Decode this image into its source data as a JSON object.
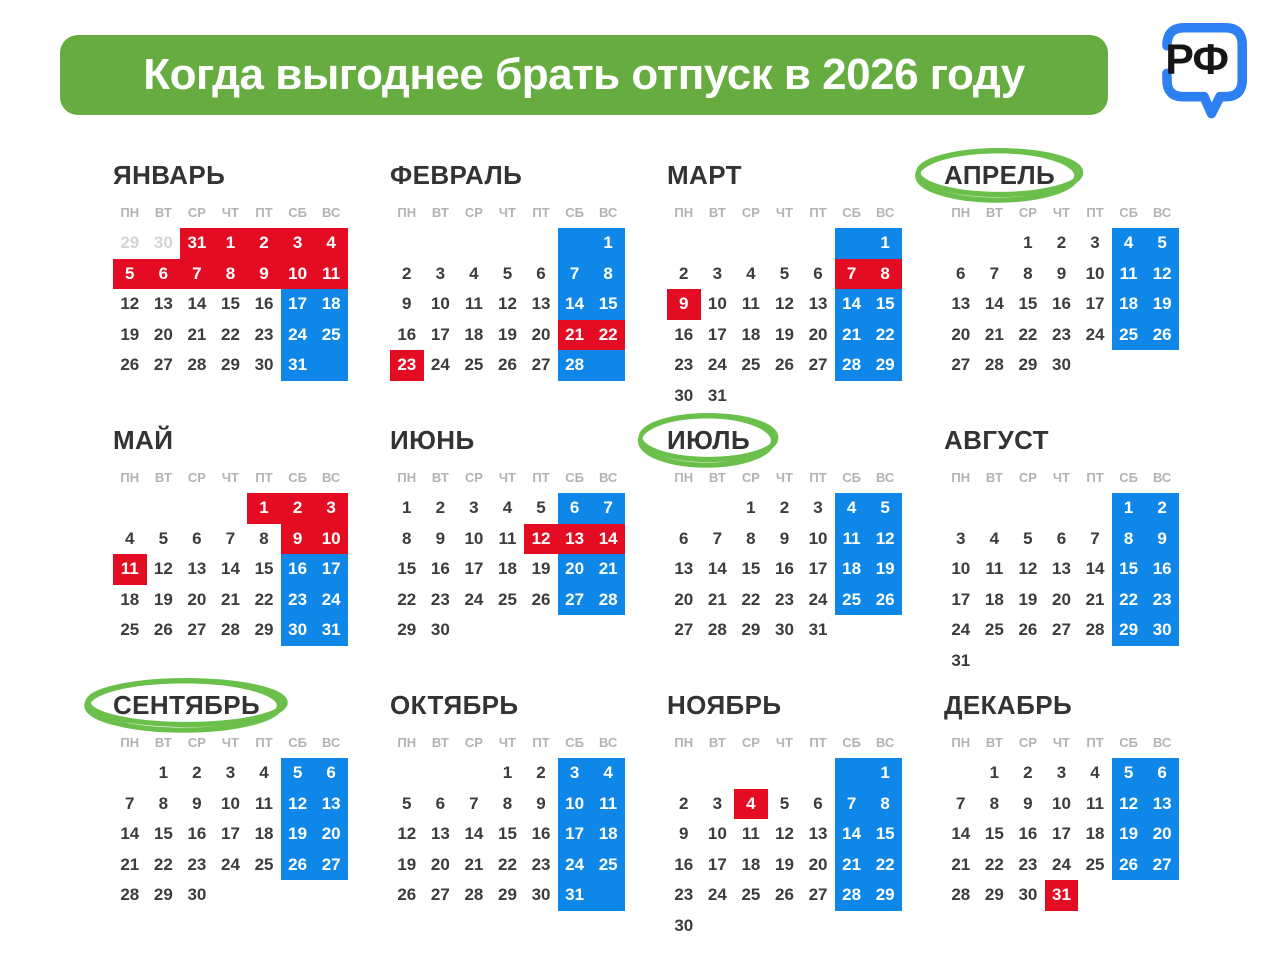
{
  "header": {
    "title": "Когда выгоднее брать отпуск в 2026 году",
    "logo_text": "РФ"
  },
  "colors": {
    "banner_green": "#66ac40",
    "circle_green": "#6bbf4b",
    "holiday_red": "#e30c22",
    "weekend_blue": "#0e87e8",
    "logo_blue": "#2d7ff2",
    "month_title": "#333333",
    "day_text": "#3c3c3c",
    "weekday_grey": "#b3b3b3",
    "adjacent_month_grey": "#d4d4d4"
  },
  "weekdays": [
    "ПН",
    "ВТ",
    "СР",
    "ЧТ",
    "ПТ",
    "СБ",
    "ВС"
  ],
  "months": [
    {
      "id": "january",
      "name": "ЯНВАРЬ",
      "circled": false,
      "weeks": [
        [
          "29|g",
          "30|g",
          "31|r",
          "1|r",
          "2|r",
          "3|r",
          "4|r"
        ],
        [
          "5|r",
          "6|r",
          "7|r",
          "8|r",
          "9|r",
          "10|r",
          "11|r"
        ],
        [
          "12|n",
          "13|n",
          "14|n",
          "15|n",
          "16|n",
          "17|b",
          "18|b"
        ],
        [
          "19|n",
          "20|n",
          "21|n",
          "22|n",
          "23|n",
          "24|b",
          "25|b"
        ],
        [
          "26|n",
          "27|n",
          "28|n",
          "29|n",
          "30|n",
          "31|b",
          "|b"
        ]
      ]
    },
    {
      "id": "february",
      "name": "ФЕВРАЛЬ",
      "circled": false,
      "weeks": [
        [
          "",
          "",
          "",
          "",
          "",
          "|b",
          "1|b"
        ],
        [
          "2|n",
          "3|n",
          "4|n",
          "5|n",
          "6|n",
          "7|b",
          "8|b"
        ],
        [
          "9|n",
          "10|n",
          "11|n",
          "12|n",
          "13|n",
          "14|b",
          "15|b"
        ],
        [
          "16|n",
          "17|n",
          "18|n",
          "19|n",
          "20|n",
          "21|r",
          "22|r"
        ],
        [
          "23|r",
          "24|n",
          "25|n",
          "26|n",
          "27|n",
          "28|b",
          "|b"
        ]
      ]
    },
    {
      "id": "march",
      "name": "МАРТ",
      "circled": false,
      "weeks": [
        [
          "",
          "",
          "",
          "",
          "",
          "|b",
          "1|b"
        ],
        [
          "2|n",
          "3|n",
          "4|n",
          "5|n",
          "6|n",
          "7|r",
          "8|r"
        ],
        [
          "9|r",
          "10|n",
          "11|n",
          "12|n",
          "13|n",
          "14|b",
          "15|b"
        ],
        [
          "16|n",
          "17|n",
          "18|n",
          "19|n",
          "20|n",
          "21|b",
          "22|b"
        ],
        [
          "23|n",
          "24|n",
          "25|n",
          "26|n",
          "27|n",
          "28|b",
          "29|b"
        ],
        [
          "30|n",
          "31|n",
          "",
          "",
          "",
          "",
          ""
        ]
      ]
    },
    {
      "id": "april",
      "name": "АПРЕЛЬ",
      "circled": true,
      "weeks": [
        [
          "",
          "",
          "1|n",
          "2|n",
          "3|n",
          "4|b",
          "5|b"
        ],
        [
          "6|n",
          "7|n",
          "8|n",
          "9|n",
          "10|n",
          "11|b",
          "12|b"
        ],
        [
          "13|n",
          "14|n",
          "15|n",
          "16|n",
          "17|n",
          "18|b",
          "19|b"
        ],
        [
          "20|n",
          "21|n",
          "22|n",
          "23|n",
          "24|n",
          "25|b",
          "26|b"
        ],
        [
          "27|n",
          "28|n",
          "29|n",
          "30|n",
          "",
          "",
          ""
        ]
      ]
    },
    {
      "id": "may",
      "name": "МАЙ",
      "circled": false,
      "weeks": [
        [
          "",
          "",
          "",
          "",
          "1|r",
          "2|r",
          "3|r"
        ],
        [
          "4|n",
          "5|n",
          "6|n",
          "7|n",
          "8|n",
          "9|r",
          "10|r"
        ],
        [
          "11|r",
          "12|n",
          "13|n",
          "14|n",
          "15|n",
          "16|b",
          "17|b"
        ],
        [
          "18|n",
          "19|n",
          "20|n",
          "21|n",
          "22|n",
          "23|b",
          "24|b"
        ],
        [
          "25|n",
          "26|n",
          "27|n",
          "28|n",
          "29|n",
          "30|b",
          "31|b"
        ]
      ]
    },
    {
      "id": "june",
      "name": "ИЮНЬ",
      "circled": false,
      "weeks": [
        [
          "1|n",
          "2|n",
          "3|n",
          "4|n",
          "5|n",
          "6|b",
          "7|b"
        ],
        [
          "8|n",
          "9|n",
          "10|n",
          "11|n",
          "12|r",
          "13|r",
          "14|r"
        ],
        [
          "15|n",
          "16|n",
          "17|n",
          "18|n",
          "19|n",
          "20|b",
          "21|b"
        ],
        [
          "22|n",
          "23|n",
          "24|n",
          "25|n",
          "26|n",
          "27|b",
          "28|b"
        ],
        [
          "29|n",
          "30|n",
          "",
          "",
          "",
          "",
          ""
        ]
      ]
    },
    {
      "id": "july",
      "name": "ИЮЛЬ",
      "circled": true,
      "weeks": [
        [
          "",
          "",
          "1|n",
          "2|n",
          "3|n",
          "4|b",
          "5|b"
        ],
        [
          "6|n",
          "7|n",
          "8|n",
          "9|n",
          "10|n",
          "11|b",
          "12|b"
        ],
        [
          "13|n",
          "14|n",
          "15|n",
          "16|n",
          "17|n",
          "18|b",
          "19|b"
        ],
        [
          "20|n",
          "21|n",
          "22|n",
          "23|n",
          "24|n",
          "25|b",
          "26|b"
        ],
        [
          "27|n",
          "28|n",
          "29|n",
          "30|n",
          "31|n",
          "",
          ""
        ]
      ]
    },
    {
      "id": "august",
      "name": "АВГУСТ",
      "circled": false,
      "weeks": [
        [
          "",
          "",
          "",
          "",
          "",
          "1|b",
          "2|b"
        ],
        [
          "3|n",
          "4|n",
          "5|n",
          "6|n",
          "7|n",
          "8|b",
          "9|b"
        ],
        [
          "10|n",
          "11|n",
          "12|n",
          "13|n",
          "14|n",
          "15|b",
          "16|b"
        ],
        [
          "17|n",
          "18|n",
          "19|n",
          "20|n",
          "21|n",
          "22|b",
          "23|b"
        ],
        [
          "24|n",
          "25|n",
          "26|n",
          "27|n",
          "28|n",
          "29|b",
          "30|b"
        ],
        [
          "31|n",
          "",
          "",
          "",
          "",
          "",
          ""
        ]
      ]
    },
    {
      "id": "september",
      "name": "СЕНТЯБРЬ",
      "circled": true,
      "weeks": [
        [
          "",
          "1|n",
          "2|n",
          "3|n",
          "4|n",
          "5|b",
          "6|b"
        ],
        [
          "7|n",
          "8|n",
          "9|n",
          "10|n",
          "11|n",
          "12|b",
          "13|b"
        ],
        [
          "14|n",
          "15|n",
          "16|n",
          "17|n",
          "18|n",
          "19|b",
          "20|b"
        ],
        [
          "21|n",
          "22|n",
          "23|n",
          "24|n",
          "25|n",
          "26|b",
          "27|b"
        ],
        [
          "28|n",
          "29|n",
          "30|n",
          "",
          "",
          "",
          ""
        ]
      ]
    },
    {
      "id": "october",
      "name": "ОКТЯБРЬ",
      "circled": false,
      "weeks": [
        [
          "",
          "",
          "",
          "1|n",
          "2|n",
          "3|b",
          "4|b"
        ],
        [
          "5|n",
          "6|n",
          "7|n",
          "8|n",
          "9|n",
          "10|b",
          "11|b"
        ],
        [
          "12|n",
          "13|n",
          "14|n",
          "15|n",
          "16|n",
          "17|b",
          "18|b"
        ],
        [
          "19|n",
          "20|n",
          "21|n",
          "22|n",
          "23|n",
          "24|b",
          "25|b"
        ],
        [
          "26|n",
          "27|n",
          "28|n",
          "29|n",
          "30|n",
          "31|b",
          "|b"
        ]
      ]
    },
    {
      "id": "november",
      "name": "НОЯБРЬ",
      "circled": false,
      "weeks": [
        [
          "",
          "",
          "",
          "",
          "",
          "|b",
          "1|b"
        ],
        [
          "2|n",
          "3|n",
          "4|r",
          "5|n",
          "6|n",
          "7|b",
          "8|b"
        ],
        [
          "9|n",
          "10|n",
          "11|n",
          "12|n",
          "13|n",
          "14|b",
          "15|b"
        ],
        [
          "16|n",
          "17|n",
          "18|n",
          "19|n",
          "20|n",
          "21|b",
          "22|b"
        ],
        [
          "23|n",
          "24|n",
          "25|n",
          "26|n",
          "27|n",
          "28|b",
          "29|b"
        ],
        [
          "30|n",
          "",
          "",
          "",
          "",
          "",
          ""
        ]
      ]
    },
    {
      "id": "december",
      "name": "ДЕКАБРЬ",
      "circled": false,
      "weeks": [
        [
          "",
          "1|n",
          "2|n",
          "3|n",
          "4|n",
          "5|b",
          "6|b"
        ],
        [
          "7|n",
          "8|n",
          "9|n",
          "10|n",
          "11|n",
          "12|b",
          "13|b"
        ],
        [
          "14|n",
          "15|n",
          "16|n",
          "17|n",
          "18|n",
          "19|b",
          "20|b"
        ],
        [
          "21|n",
          "22|n",
          "23|n",
          "24|n",
          "25|n",
          "26|b",
          "27|b"
        ],
        [
          "28|n",
          "29|n",
          "30|n",
          "31|r",
          "",
          "",
          ""
        ]
      ]
    }
  ]
}
